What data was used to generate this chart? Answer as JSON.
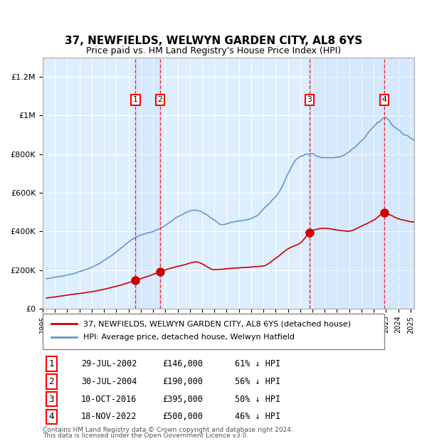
{
  "title": "37, NEWFIELDS, WELWYN GARDEN CITY, AL8 6YS",
  "subtitle": "Price paid vs. HM Land Registry's House Price Index (HPI)",
  "hpi_label": "HPI: Average price, detached house, Welwyn Hatfield",
  "property_label": "37, NEWFIELDS, WELWYN GARDEN CITY, AL8 6YS (detached house)",
  "footer_line1": "Contains HM Land Registry data © Crown copyright and database right 2024.",
  "footer_line2": "This data is licensed under the Open Government Licence v3.0.",
  "hpi_color": "#6699cc",
  "property_color": "#cc0000",
  "sale_marker_color": "#cc0000",
  "background_color": "#ffffff",
  "plot_bg_color": "#ddeeff",
  "grid_color": "#ffffff",
  "sales": [
    {
      "label": "1",
      "date_str": "29-JUL-2002",
      "date_x": 2002.57,
      "price": 146000,
      "pct": "61% ↓ HPI"
    },
    {
      "label": "2",
      "date_str": "30-JUL-2004",
      "date_x": 2004.57,
      "price": 190000,
      "pct": "56% ↓ HPI"
    },
    {
      "label": "3",
      "date_str": "10-OCT-2016",
      "date_x": 2016.77,
      "price": 395000,
      "pct": "50% ↓ HPI"
    },
    {
      "label": "4",
      "date_str": "18-NOV-2022",
      "date_x": 2022.88,
      "price": 500000,
      "pct": "46% ↓ HPI"
    }
  ],
  "ylim": [
    0,
    1300000
  ],
  "xlim_start": 1995.3,
  "xlim_end": 2025.3,
  "yticks": [
    0,
    200000,
    400000,
    600000,
    800000,
    1000000,
    1200000
  ],
  "ytick_labels": [
    "£0",
    "£200K",
    "£400K",
    "£600K",
    "£800K",
    "£1M",
    "£1.2M"
  ]
}
